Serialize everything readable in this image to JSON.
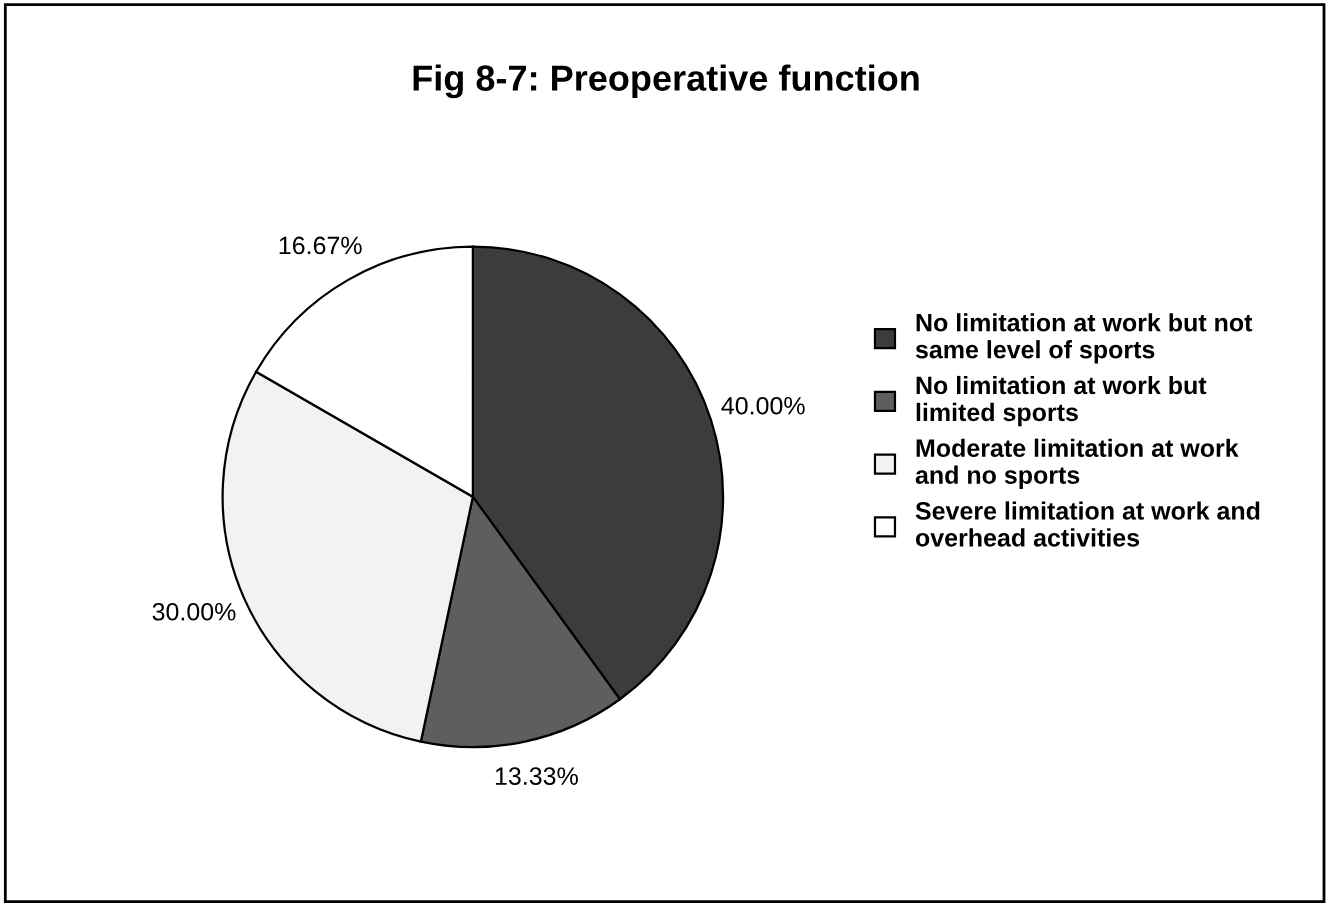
{
  "chart_data": {
    "type": "pie",
    "title": "Fig 8-7: Preoperative function",
    "categories": [
      "No limitation at work but not same level of sports",
      "No limitation at work but limited sports",
      "Moderate limitation at work and no sports",
      "Severe limitation at work and overhead activities"
    ],
    "values": [
      40.0,
      13.33,
      30.0,
      16.67
    ],
    "value_labels": [
      "40.00%",
      "13.33%",
      "30.00%",
      "16.67%"
    ],
    "colors": [
      "#3c3c3c",
      "#5e5e5e",
      "#f2f2f2",
      "#ffffff"
    ],
    "legend": "right"
  }
}
